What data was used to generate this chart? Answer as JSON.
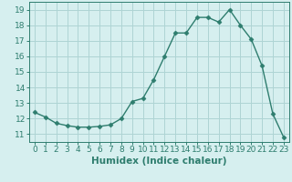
{
  "x": [
    0,
    1,
    2,
    3,
    4,
    5,
    6,
    7,
    8,
    9,
    10,
    11,
    12,
    13,
    14,
    15,
    16,
    17,
    18,
    19,
    20,
    21,
    22,
    23
  ],
  "y": [
    12.4,
    12.1,
    11.7,
    11.55,
    11.45,
    11.45,
    11.5,
    11.6,
    12.0,
    13.1,
    13.3,
    14.5,
    16.0,
    17.5,
    17.5,
    18.5,
    18.5,
    18.2,
    19.0,
    18.0,
    17.1,
    15.4,
    12.3,
    10.8
  ],
  "line_color": "#2e7d6e",
  "marker": "D",
  "marker_size": 2.5,
  "bg_color": "#d6efef",
  "grid_color": "#aed4d4",
  "xlabel": "Humidex (Indice chaleur)",
  "xlim": [
    -0.5,
    23.5
  ],
  "ylim": [
    10.5,
    19.5
  ],
  "yticks": [
    11,
    12,
    13,
    14,
    15,
    16,
    17,
    18,
    19
  ],
  "xticks": [
    0,
    1,
    2,
    3,
    4,
    5,
    6,
    7,
    8,
    9,
    10,
    11,
    12,
    13,
    14,
    15,
    16,
    17,
    18,
    19,
    20,
    21,
    22,
    23
  ],
  "tick_fontsize": 6.5,
  "xlabel_fontsize": 7.5,
  "line_width": 1.0
}
